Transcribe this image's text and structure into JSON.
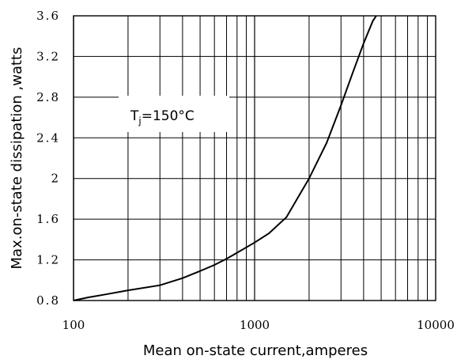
{
  "chart_data": {
    "type": "line",
    "title": "",
    "xlabel": "Mean on-state current,amperes",
    "ylabel": "Max.on-state dissipation ,watts",
    "xscale": "log",
    "xlim": [
      100,
      10000
    ],
    "ylim": [
      0.8,
      3.6
    ],
    "grid": true,
    "x_tick_labels": [
      "100",
      "1000",
      "10000"
    ],
    "y_tick_labels": [
      "0.8",
      "1.2",
      "1.6",
      "2",
      "2.4",
      "2.8",
      "3.2",
      "3.6"
    ],
    "annotation": {
      "label_main": "T",
      "label_sub": "j",
      "label_rest": "=150°C"
    },
    "series": [
      {
        "x": [
          100,
          120,
          150,
          200,
          300,
          400,
          500,
          600,
          700,
          800,
          1000,
          1200,
          1500,
          2000,
          2500,
          3000,
          3500,
          4000,
          4500,
          4700
        ],
        "y": [
          0.8,
          0.83,
          0.86,
          0.9,
          0.95,
          1.02,
          1.09,
          1.15,
          1.21,
          1.27,
          1.37,
          1.46,
          1.62,
          2.0,
          2.35,
          2.72,
          3.05,
          3.33,
          3.55,
          3.6
        ]
      }
    ]
  }
}
